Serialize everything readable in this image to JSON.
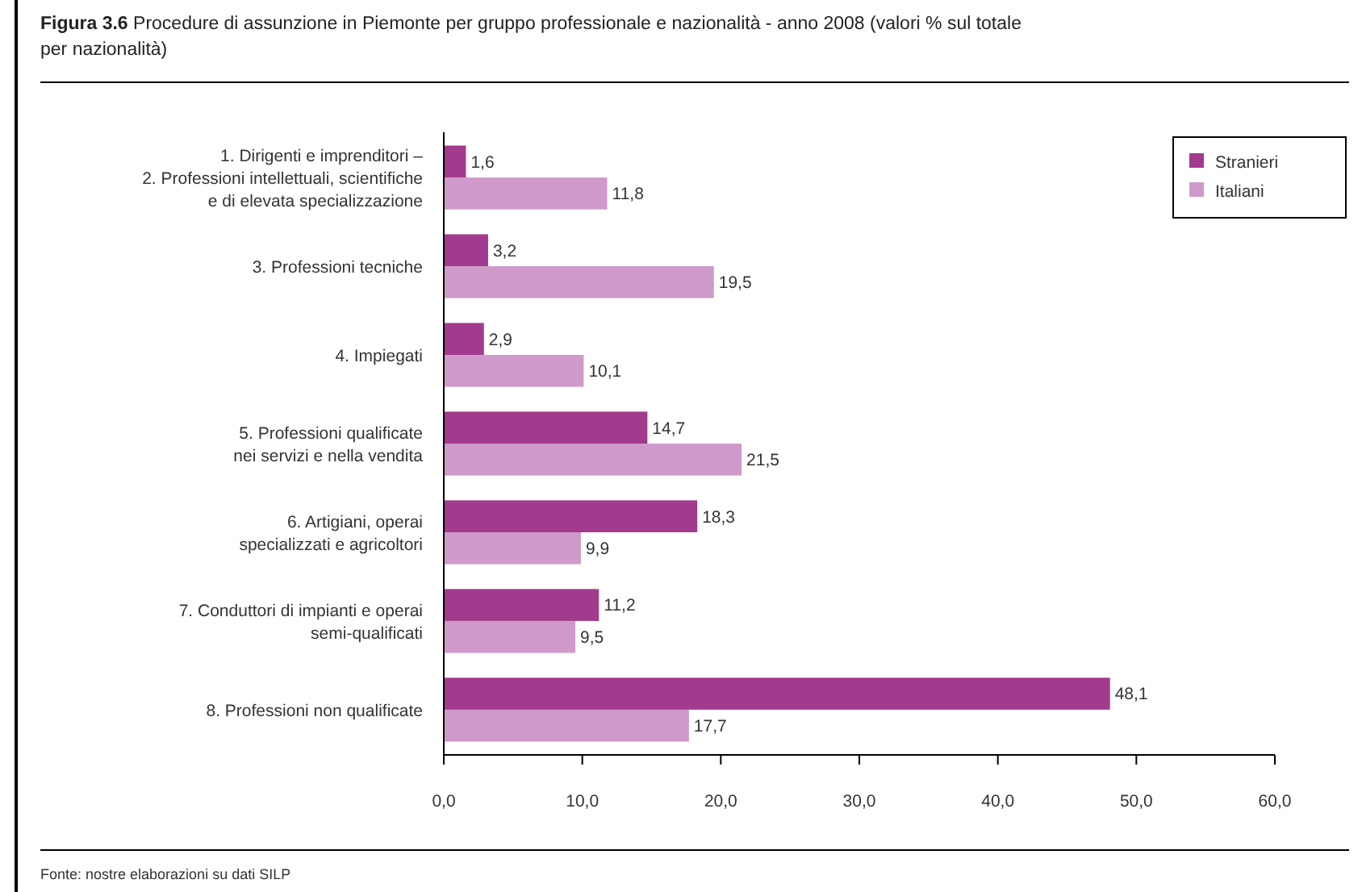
{
  "chart_data": {
    "type": "bar",
    "orientation": "horizontal",
    "title": "Figura 3.6 Procedure di assunzione in Piemonte per gruppo professionale e nazionalità - anno 2008 (valori % sul totale per nazionalità)",
    "categories": [
      "1. Dirigenti e imprenditori –\n2. Professioni intellettuali, scientifiche\ne di elevata specializzazione",
      "3. Professioni tecniche",
      "4. Impiegati",
      "5. Professioni qualificate\nnei servizi e nella vendita",
      "6. Artigiani, operai\nspecializzati e agricoltori",
      "7. Conduttori di impianti e operai\nsemi-qualificati",
      "8. Professioni non qualificate"
    ],
    "series": [
      {
        "name": "Stranieri",
        "color": "#a23a8e",
        "values": [
          1.6,
          3.2,
          2.9,
          14.7,
          18.3,
          11.2,
          48.1
        ],
        "value_labels": [
          "1,6",
          "3,2",
          "2,9",
          "14,7",
          "18,3",
          "11,2",
          "48,1"
        ]
      },
      {
        "name": "Italiani",
        "color": "#cf9ac9",
        "values": [
          11.8,
          19.5,
          10.1,
          21.5,
          9.9,
          9.5,
          17.7
        ],
        "value_labels": [
          "11,8",
          "19,5",
          "10,1",
          "21,5",
          "9,9",
          "9,5",
          "17,7"
        ]
      }
    ],
    "xlim": [
      0,
      60
    ],
    "xticks": [
      {
        "value": 0,
        "label": "0,0"
      },
      {
        "value": 10,
        "label": "10,0"
      },
      {
        "value": 20,
        "label": "20,0"
      },
      {
        "value": 30,
        "label": "30,0"
      },
      {
        "value": 40,
        "label": "40,0"
      },
      {
        "value": 50,
        "label": "50,0"
      },
      {
        "value": 60,
        "label": "60,0"
      }
    ],
    "legend": "top right",
    "annotations": [
      "Fonte: nostre elaborazioni su dati SILP"
    ]
  }
}
